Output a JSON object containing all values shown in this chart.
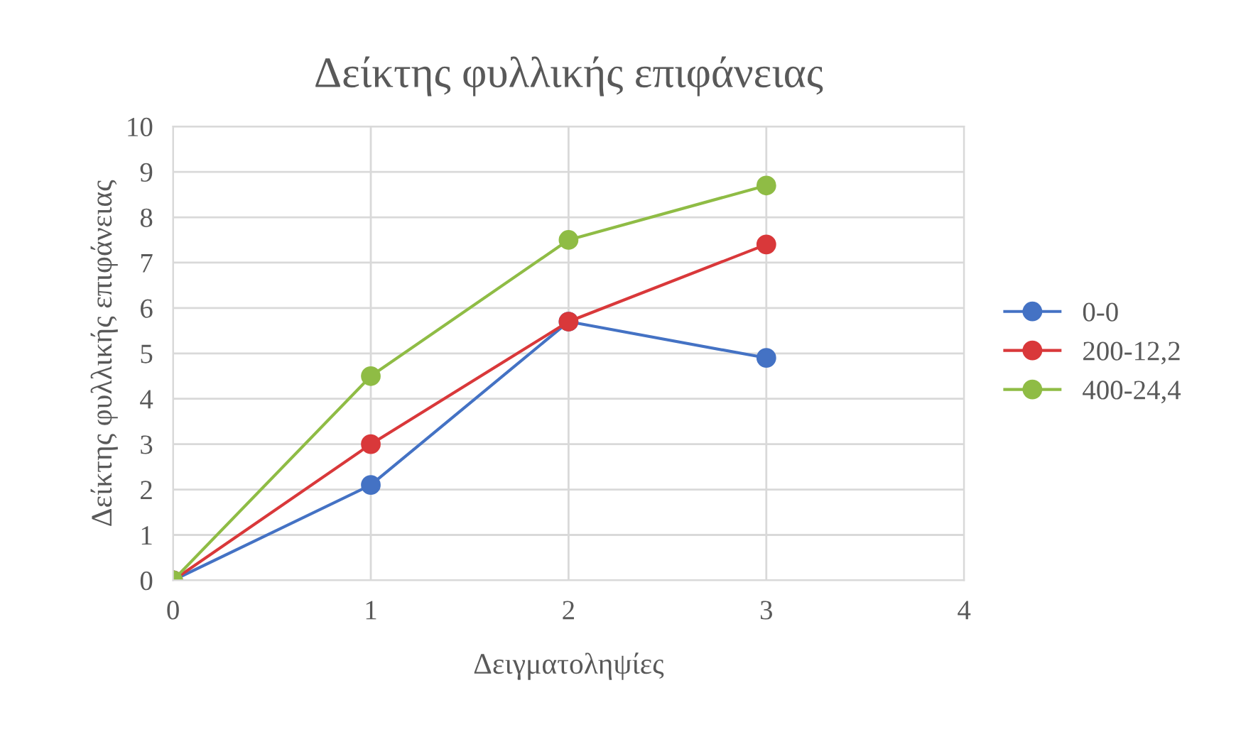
{
  "chart_data": {
    "type": "line",
    "title": "Δείκτης φυλλικής επιφάνειας",
    "xlabel": "Δειγματοληψίες",
    "ylabel": "Δείκτης φυλλικής επιφάνειας",
    "x": [
      0,
      1,
      2,
      3
    ],
    "series": [
      {
        "name": "0-0",
        "color": "#4472c4",
        "values": [
          0,
          2.1,
          5.7,
          4.9
        ]
      },
      {
        "name": "200-12,2",
        "color": "#d9383a",
        "values": [
          0,
          3.0,
          5.7,
          7.4
        ]
      },
      {
        "name": "400-24,4",
        "color": "#8fbc45",
        "values": [
          0,
          4.5,
          7.5,
          8.7
        ]
      }
    ],
    "xlim": [
      0,
      4
    ],
    "xticks": [
      0,
      1,
      2,
      3,
      4
    ],
    "ylim": [
      0,
      10
    ],
    "yticks": [
      0,
      1,
      2,
      3,
      4,
      5,
      6,
      7,
      8,
      9,
      10
    ],
    "grid": true,
    "legend": "right",
    "marker": "circle",
    "line_style": "solid"
  }
}
